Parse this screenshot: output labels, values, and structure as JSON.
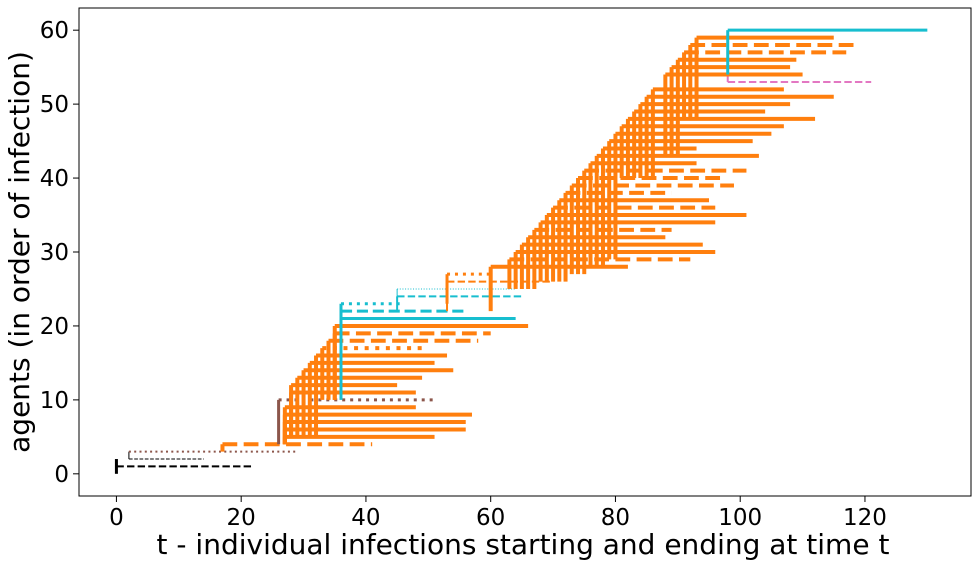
{
  "chart_data": {
    "type": "line",
    "title": "",
    "xlabel": "t - individual infections starting and ending at time t",
    "ylabel": "agents (in order of infection)",
    "xlim": [
      -6,
      137
    ],
    "ylim": [
      -3,
      63
    ],
    "xticks": [
      0,
      20,
      40,
      60,
      80,
      100,
      120
    ],
    "yticks": [
      0,
      10,
      20,
      30,
      40,
      50,
      60
    ],
    "grid": false,
    "legend": "none",
    "colors": {
      "black": "#000000",
      "brown": "#8c564b",
      "orange": "#ff7f0e",
      "cyan": "#17becf",
      "pink": "#e377c2"
    },
    "infections": [
      {
        "agent": 0,
        "start": 0,
        "end": 0,
        "color": "black",
        "style": "solid",
        "width": 3,
        "parent_y": 2
      },
      {
        "agent": 1,
        "start": 0,
        "end": 22,
        "color": "black",
        "style": "dashed",
        "width": 2,
        "parent_y": 1
      },
      {
        "agent": 2,
        "start": 2,
        "end": 14,
        "color": "black",
        "style": "dashed",
        "width": 1,
        "parent_y": 3
      },
      {
        "agent": 3,
        "start": 2,
        "end": 29,
        "color": "brown",
        "style": "dotted",
        "width": 2,
        "parent_y": 3
      },
      {
        "agent": 4,
        "start": 17,
        "end": 41,
        "color": "orange",
        "style": "dashed",
        "width": 4,
        "parent_y": 3
      },
      {
        "agent": 5,
        "start": 27,
        "end": 51,
        "color": "orange",
        "style": "solid",
        "width": 4,
        "parent_y": 4
      },
      {
        "agent": 6,
        "start": 27,
        "end": 56,
        "color": "orange",
        "style": "solid",
        "width": 4,
        "parent_y": 4
      },
      {
        "agent": 7,
        "start": 27,
        "end": 56,
        "color": "orange",
        "style": "solid",
        "width": 4,
        "parent_y": 4
      },
      {
        "agent": 8,
        "start": 27,
        "end": 57,
        "color": "orange",
        "style": "solid",
        "width": 4,
        "parent_y": 4
      },
      {
        "agent": 9,
        "start": 27,
        "end": 48,
        "color": "orange",
        "style": "solid",
        "width": 4,
        "parent_y": 4
      },
      {
        "agent": 10,
        "start": 26,
        "end": 51,
        "color": "brown",
        "style": "dotted",
        "width": 3,
        "parent_y": 4
      },
      {
        "agent": 11,
        "start": 28,
        "end": 48,
        "color": "orange",
        "style": "solid",
        "width": 4,
        "parent_y": 5
      },
      {
        "agent": 12,
        "start": 28,
        "end": 45,
        "color": "orange",
        "style": "solid",
        "width": 4,
        "parent_y": 5
      },
      {
        "agent": 13,
        "start": 29,
        "end": 49,
        "color": "orange",
        "style": "solid",
        "width": 4,
        "parent_y": 5
      },
      {
        "agent": 14,
        "start": 30,
        "end": 54,
        "color": "orange",
        "style": "solid",
        "width": 4,
        "parent_y": 5
      },
      {
        "agent": 15,
        "start": 31,
        "end": 51,
        "color": "orange",
        "style": "solid",
        "width": 4,
        "parent_y": 5
      },
      {
        "agent": 16,
        "start": 32,
        "end": 53,
        "color": "orange",
        "style": "solid",
        "width": 4,
        "parent_y": 5
      },
      {
        "agent": 17,
        "start": 33,
        "end": 49,
        "color": "orange",
        "style": "dotted",
        "width": 4,
        "parent_y": 10
      },
      {
        "agent": 18,
        "start": 34,
        "end": 58,
        "color": "orange",
        "style": "dashed",
        "width": 4,
        "parent_y": 10
      },
      {
        "agent": 19,
        "start": 35,
        "end": 60,
        "color": "orange",
        "style": "dashed",
        "width": 4,
        "parent_y": 10
      },
      {
        "agent": 20,
        "start": 35,
        "end": 66,
        "color": "orange",
        "style": "solid",
        "width": 4,
        "parent_y": 10
      },
      {
        "agent": 21,
        "start": 36,
        "end": 64,
        "color": "cyan",
        "style": "solid",
        "width": 3,
        "parent_y": 10
      },
      {
        "agent": 22,
        "start": 36,
        "end": 56,
        "color": "cyan",
        "style": "dashed",
        "width": 3,
        "parent_y": 21
      },
      {
        "agent": 23,
        "start": 36,
        "end": 46,
        "color": "cyan",
        "style": "dotted",
        "width": 3,
        "parent_y": 21
      },
      {
        "agent": 24,
        "start": 45,
        "end": 65,
        "color": "cyan",
        "style": "dashed",
        "width": 2,
        "parent_y": 22
      },
      {
        "agent": 25,
        "start": 45,
        "end": 64,
        "color": "cyan",
        "style": "dotted",
        "width": 1,
        "parent_y": 22
      },
      {
        "agent": 26,
        "start": 53,
        "end": 70,
        "color": "orange",
        "style": "dashed",
        "width": 2,
        "parent_y": 22
      },
      {
        "agent": 27,
        "start": 53,
        "end": 60,
        "color": "orange",
        "style": "dotted",
        "width": 3,
        "parent_y": 23
      },
      {
        "agent": 28,
        "start": 60,
        "end": 82,
        "color": "orange",
        "style": "solid",
        "width": 4,
        "parent_y": 22
      },
      {
        "agent": 29,
        "start": 63,
        "end": 92,
        "color": "orange",
        "style": "dashed",
        "width": 4,
        "parent_y": 25
      },
      {
        "agent": 30,
        "start": 64,
        "end": 96,
        "color": "orange",
        "style": "solid",
        "width": 4,
        "parent_y": 25
      },
      {
        "agent": 31,
        "start": 65,
        "end": 94,
        "color": "orange",
        "style": "solid",
        "width": 4,
        "parent_y": 25
      },
      {
        "agent": 32,
        "start": 66,
        "end": 88,
        "color": "orange",
        "style": "solid",
        "width": 4,
        "parent_y": 25
      },
      {
        "agent": 33,
        "start": 67,
        "end": 89,
        "color": "orange",
        "style": "dashed",
        "width": 4,
        "parent_y": 25
      },
      {
        "agent": 34,
        "start": 68,
        "end": 96,
        "color": "orange",
        "style": "solid",
        "width": 4,
        "parent_y": 26
      },
      {
        "agent": 35,
        "start": 69,
        "end": 101,
        "color": "orange",
        "style": "solid",
        "width": 4,
        "parent_y": 26
      },
      {
        "agent": 36,
        "start": 70,
        "end": 96,
        "color": "orange",
        "style": "dashed",
        "width": 4,
        "parent_y": 26
      },
      {
        "agent": 37,
        "start": 71,
        "end": 95,
        "color": "orange",
        "style": "solid",
        "width": 4,
        "parent_y": 26
      },
      {
        "agent": 38,
        "start": 72,
        "end": 89,
        "color": "orange",
        "style": "dashed",
        "width": 4,
        "parent_y": 26
      },
      {
        "agent": 39,
        "start": 73,
        "end": 99,
        "color": "orange",
        "style": "dashed",
        "width": 4,
        "parent_y": 27
      },
      {
        "agent": 40,
        "start": 74,
        "end": 97,
        "color": "orange",
        "style": "dashed",
        "width": 4,
        "parent_y": 27
      },
      {
        "agent": 41,
        "start": 75,
        "end": 101,
        "color": "orange",
        "style": "dashed",
        "width": 4,
        "parent_y": 27
      },
      {
        "agent": 42,
        "start": 76,
        "end": 93,
        "color": "orange",
        "style": "solid",
        "width": 4,
        "parent_y": 28
      },
      {
        "agent": 43,
        "start": 77,
        "end": 103,
        "color": "orange",
        "style": "solid",
        "width": 4,
        "parent_y": 28
      },
      {
        "agent": 44,
        "start": 78,
        "end": 93,
        "color": "orange",
        "style": "solid",
        "width": 4,
        "parent_y": 28
      },
      {
        "agent": 45,
        "start": 79,
        "end": 102,
        "color": "orange",
        "style": "solid",
        "width": 4,
        "parent_y": 29
      },
      {
        "agent": 46,
        "start": 80,
        "end": 105,
        "color": "orange",
        "style": "solid",
        "width": 4,
        "parent_y": 29
      },
      {
        "agent": 47,
        "start": 81,
        "end": 107,
        "color": "orange",
        "style": "solid",
        "width": 4,
        "parent_y": 40
      },
      {
        "agent": 48,
        "start": 82,
        "end": 112,
        "color": "orange",
        "style": "solid",
        "width": 4,
        "parent_y": 40
      },
      {
        "agent": 49,
        "start": 83,
        "end": 104,
        "color": "orange",
        "style": "solid",
        "width": 4,
        "parent_y": 40
      },
      {
        "agent": 50,
        "start": 84,
        "end": 108,
        "color": "orange",
        "style": "solid",
        "width": 4,
        "parent_y": 40
      },
      {
        "agent": 51,
        "start": 85,
        "end": 115,
        "color": "orange",
        "style": "solid",
        "width": 4,
        "parent_y": 40
      },
      {
        "agent": 52,
        "start": 86,
        "end": 107,
        "color": "orange",
        "style": "solid",
        "width": 4,
        "parent_y": 40
      },
      {
        "agent": 53,
        "start": 98,
        "end": 121,
        "color": "pink",
        "style": "dashed",
        "width": 2,
        "parent_y": 54
      },
      {
        "agent": 54,
        "start": 88,
        "end": 110,
        "color": "orange",
        "style": "solid",
        "width": 4,
        "parent_y": 43
      },
      {
        "agent": 55,
        "start": 89,
        "end": 108,
        "color": "orange",
        "style": "solid",
        "width": 4,
        "parent_y": 43
      },
      {
        "agent": 56,
        "start": 90,
        "end": 109,
        "color": "orange",
        "style": "solid",
        "width": 4,
        "parent_y": 43
      },
      {
        "agent": 57,
        "start": 91,
        "end": 117,
        "color": "orange",
        "style": "dashed",
        "width": 4,
        "parent_y": 48
      },
      {
        "agent": 58,
        "start": 92,
        "end": 119,
        "color": "orange",
        "style": "dashed",
        "width": 4,
        "parent_y": 48
      },
      {
        "agent": 59,
        "start": 93,
        "end": 115,
        "color": "orange",
        "style": "solid",
        "width": 4,
        "parent_y": 48
      },
      {
        "agent": 60,
        "start": 98,
        "end": 130,
        "color": "cyan",
        "style": "solid",
        "width": 3,
        "parent_y": 54
      }
    ]
  }
}
